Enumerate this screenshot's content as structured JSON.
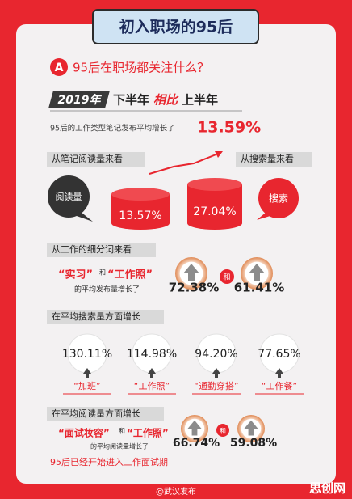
{
  "header": {
    "title": "初入职场的95后"
  },
  "section": {
    "badge": "A",
    "heading": "95后在职场都关注什么？"
  },
  "banner": {
    "year": "2019年",
    "left": "下半年",
    "compare": "相比",
    "right": "上半年"
  },
  "overall": {
    "text": "95后的工作类型笔记发布平均增长了",
    "value": "13.59%"
  },
  "reads_vs_search": {
    "read_label": "从笔记阅读量来看",
    "search_label": "从搜索量来看",
    "read_bubble": "阅读量",
    "read_value": "13.57%",
    "search_value": "27.04%",
    "search_bubble": "搜索"
  },
  "keywords": {
    "label": "从工作的细分词来看",
    "term1": "“实习”",
    "and": "和",
    "term2": "“工作照”",
    "desc": "的平均发布量增长了",
    "value1": "72.38%",
    "and2": "和",
    "value2": "61.41%"
  },
  "search_growth": {
    "label": "在平均搜索量方面增长",
    "items": [
      {
        "value": "130.11%",
        "term": "“加班”"
      },
      {
        "value": "114.98%",
        "term": "“工作照”"
      },
      {
        "value": "94.20%",
        "term": "“通勤穿搭”"
      },
      {
        "value": "77.65%",
        "term": "“工作餐”"
      }
    ]
  },
  "read_growth": {
    "label": "在平均阅读量方面增长",
    "term1": "“面试妆容”",
    "and": "和",
    "term2": "“工作照”",
    "desc": "的平均阅读量增长了",
    "value1": "66.74%",
    "and2": "和",
    "value2": "59.08%"
  },
  "conclusion": "95后已经开始进入工作面试期",
  "footer": {
    "source": "@武汉发布",
    "watermark": "思创网"
  }
}
